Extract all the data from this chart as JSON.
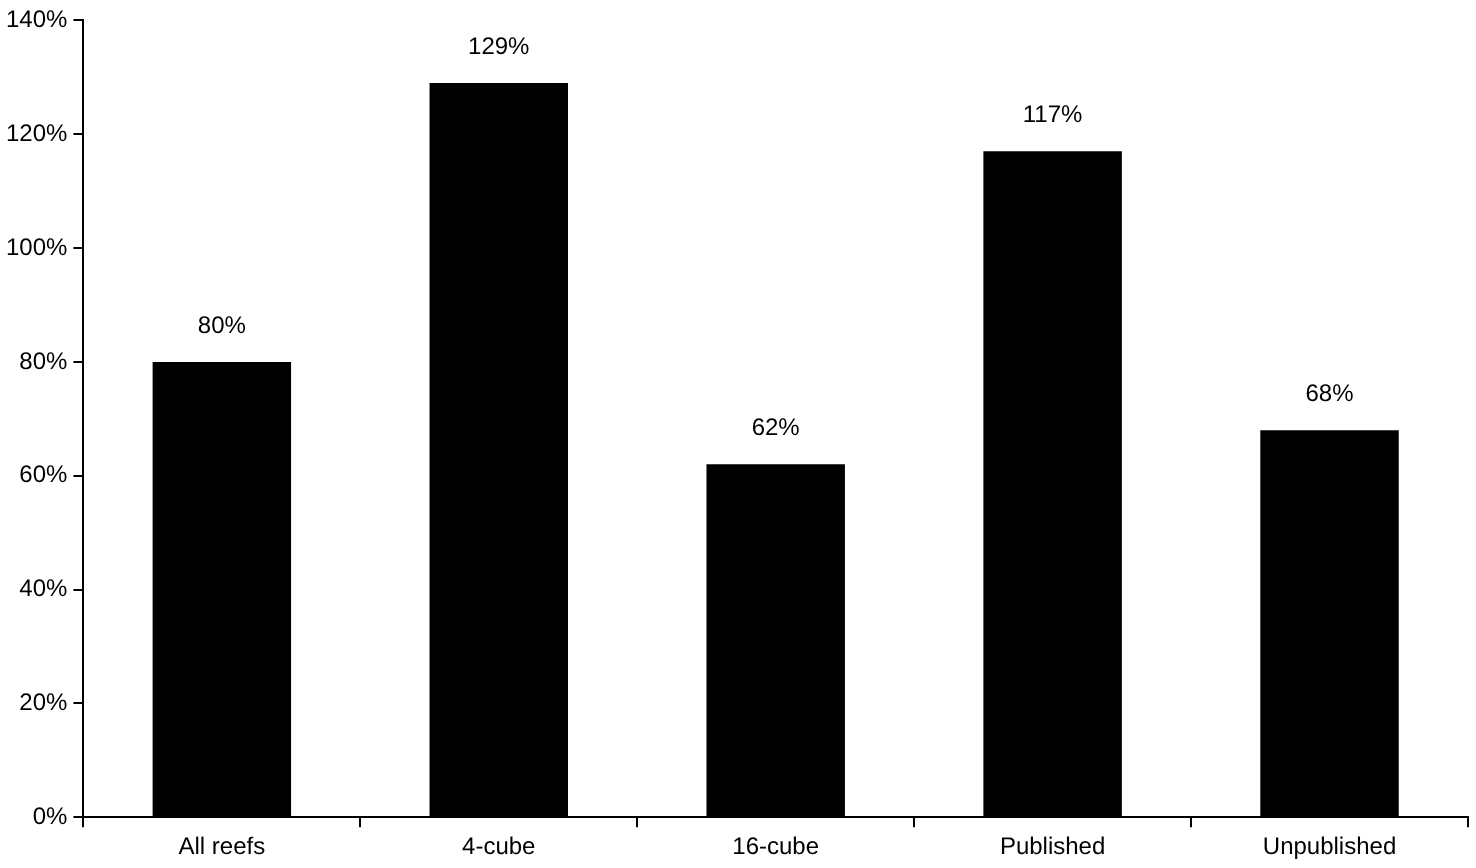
{
  "chart_data": {
    "type": "bar",
    "categories": [
      "All reefs",
      "4-cube",
      "16-cube",
      "Published",
      "Unpublished"
    ],
    "values": [
      80,
      129,
      62,
      117,
      68
    ],
    "value_labels": [
      "80%",
      "129%",
      "62%",
      "117%",
      "68%"
    ],
    "color": "#000000",
    "ylim": [
      0,
      140
    ],
    "yticks": [
      {
        "value": 0,
        "label": "0%"
      },
      {
        "value": 20,
        "label": "20%"
      },
      {
        "value": 40,
        "label": "40%"
      },
      {
        "value": 60,
        "label": "60%"
      },
      {
        "value": 80,
        "label": "80%"
      },
      {
        "value": 100,
        "label": "100%"
      },
      {
        "value": 120,
        "label": "120%"
      },
      {
        "value": 140,
        "label": "140%"
      }
    ],
    "grid": false,
    "legend": false
  }
}
